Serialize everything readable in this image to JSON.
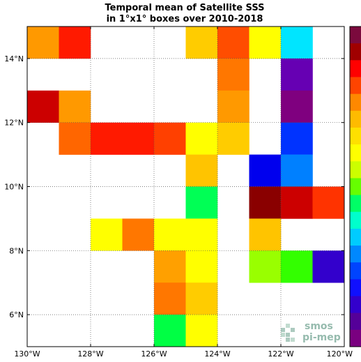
{
  "chart_data": {
    "type": "heatmap",
    "title_lines": [
      "Temporal mean of Satellite SSS",
      "in 1°x1° boxes over 2010-2018"
    ],
    "xlim": [
      -130,
      -120
    ],
    "ylim": [
      5,
      15
    ],
    "x_ticks": [
      {
        "value": -130,
        "label": "130°W"
      },
      {
        "value": -128,
        "label": "128°W"
      },
      {
        "value": -126,
        "label": "126°W"
      },
      {
        "value": -124,
        "label": "124°W"
      },
      {
        "value": -122,
        "label": "122°W"
      },
      {
        "value": -120,
        "label": "120°W"
      }
    ],
    "y_ticks": [
      {
        "value": 6,
        "label": "6°N"
      },
      {
        "value": 8,
        "label": "8°N"
      },
      {
        "value": 10,
        "label": "10°N"
      },
      {
        "value": 12,
        "label": "12°N"
      },
      {
        "value": 14,
        "label": "14°N"
      }
    ],
    "grid": true,
    "colormap": [
      "#7b0a3d",
      "#a00000",
      "#ff0000",
      "#ff4400",
      "#ff8800",
      "#ffbb00",
      "#ffe000",
      "#ffff00",
      "#ccff00",
      "#66ff00",
      "#00ff66",
      "#00ffcc",
      "#00ccff",
      "#0088ff",
      "#0044ff",
      "#1010ff",
      "#3300cc",
      "#550099",
      "#7a0080"
    ],
    "cells": [
      {
        "lon": -130,
        "lat": 14,
        "color": "#ff9900"
      },
      {
        "lon": -129,
        "lat": 14,
        "color": "#ff1a00"
      },
      {
        "lon": -125,
        "lat": 14,
        "color": "#ffcc00"
      },
      {
        "lon": -124,
        "lat": 14,
        "color": "#ff4d00"
      },
      {
        "lon": -123,
        "lat": 14,
        "color": "#ffff00"
      },
      {
        "lon": -122,
        "lat": 14,
        "color": "#00e5ff"
      },
      {
        "lon": -124,
        "lat": 13,
        "color": "#ff7700"
      },
      {
        "lon": -122,
        "lat": 13,
        "color": "#6600b3"
      },
      {
        "lon": -130,
        "lat": 12,
        "color": "#cc0000"
      },
      {
        "lon": -129,
        "lat": 12,
        "color": "#ff9900"
      },
      {
        "lon": -124,
        "lat": 12,
        "color": "#ff9900"
      },
      {
        "lon": -122,
        "lat": 12,
        "color": "#7f007f"
      },
      {
        "lon": -129,
        "lat": 11,
        "color": "#ff6600"
      },
      {
        "lon": -128,
        "lat": 11,
        "color": "#ff1a00"
      },
      {
        "lon": -127,
        "lat": 11,
        "color": "#ff1a00"
      },
      {
        "lon": -126,
        "lat": 11,
        "color": "#ff4000"
      },
      {
        "lon": -125,
        "lat": 11,
        "color": "#ffff00"
      },
      {
        "lon": -124,
        "lat": 11,
        "color": "#ffcc00"
      },
      {
        "lon": -122,
        "lat": 11,
        "color": "#0033ff"
      },
      {
        "lon": -125,
        "lat": 10,
        "color": "#ffc400"
      },
      {
        "lon": -123,
        "lat": 10,
        "color": "#0000ee"
      },
      {
        "lon": -122,
        "lat": 10,
        "color": "#0080ff"
      },
      {
        "lon": -125,
        "lat": 9,
        "color": "#00ff55"
      },
      {
        "lon": -123,
        "lat": 9,
        "color": "#8a0000"
      },
      {
        "lon": -122,
        "lat": 9,
        "color": "#cc0000"
      },
      {
        "lon": -121,
        "lat": 9,
        "color": "#ff3300"
      },
      {
        "lon": -128,
        "lat": 8,
        "color": "#ffff00"
      },
      {
        "lon": -127,
        "lat": 8,
        "color": "#ff7700"
      },
      {
        "lon": -126,
        "lat": 8,
        "color": "#ffff00"
      },
      {
        "lon": -125,
        "lat": 8,
        "color": "#ffff00"
      },
      {
        "lon": -123,
        "lat": 8,
        "color": "#ffc400"
      },
      {
        "lon": -126,
        "lat": 7,
        "color": "#ffa000"
      },
      {
        "lon": -125,
        "lat": 7,
        "color": "#ffff00"
      },
      {
        "lon": -123,
        "lat": 7,
        "color": "#99ff00"
      },
      {
        "lon": -122,
        "lat": 7,
        "color": "#33ff00"
      },
      {
        "lon": -121,
        "lat": 7,
        "color": "#3300cc"
      },
      {
        "lon": -126,
        "lat": 6,
        "color": "#ff7700"
      },
      {
        "lon": -125,
        "lat": 6,
        "color": "#ffcc00"
      },
      {
        "lon": -126,
        "lat": 5,
        "color": "#00ff44"
      },
      {
        "lon": -125,
        "lat": 5,
        "color": "#ffff00"
      }
    ]
  },
  "logo": {
    "line1": "smos",
    "line2": "pi-mep"
  }
}
